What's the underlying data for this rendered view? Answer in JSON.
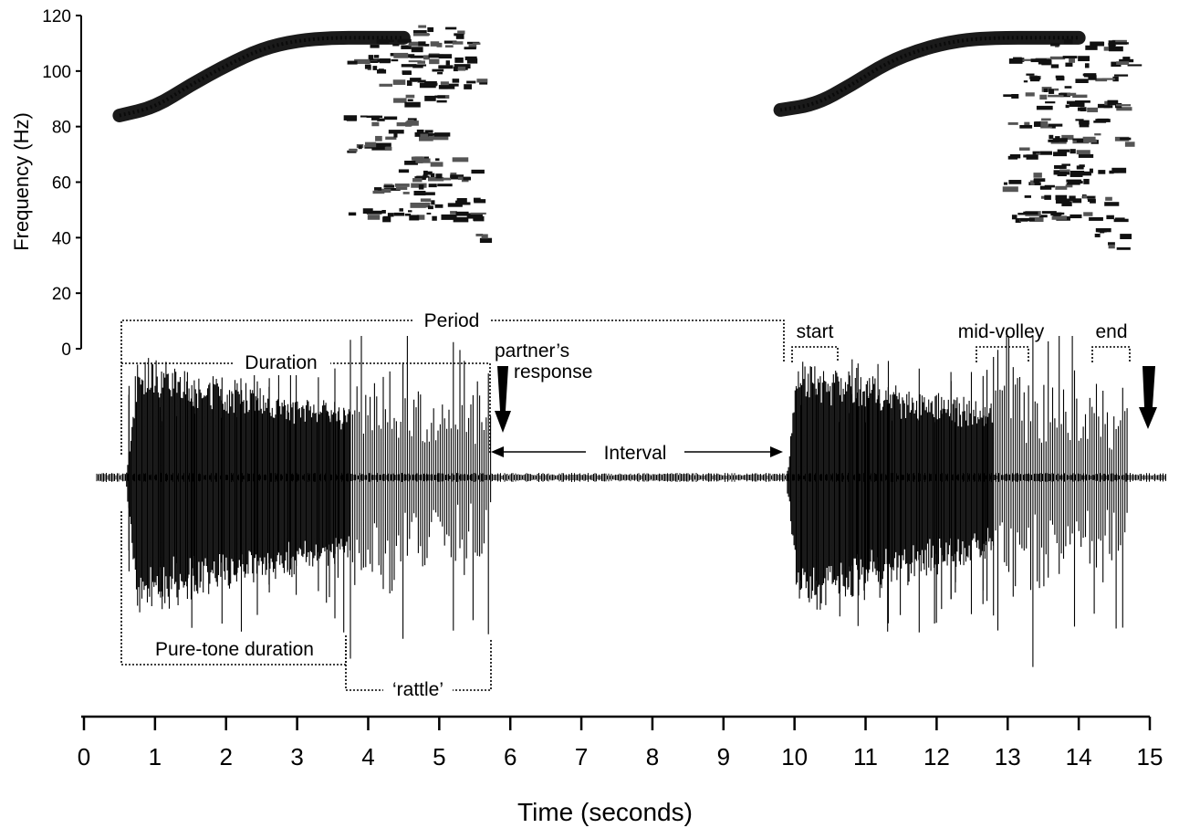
{
  "chart_data": {
    "type": "spectrogram-waveform",
    "title": "",
    "xlabel": "Time (seconds)",
    "ylabel": "Frequency (Hz)",
    "xlim": [
      0,
      15
    ],
    "ylim": [
      0,
      120
    ],
    "x_ticks": [
      0,
      1,
      2,
      3,
      4,
      5,
      6,
      7,
      8,
      9,
      10,
      11,
      12,
      13,
      14,
      15
    ],
    "y_ticks": [
      0,
      20,
      40,
      60,
      80,
      100,
      120
    ],
    "calls": [
      {
        "start": 0.6,
        "pure_tone_end": 3.75,
        "end": 5.75
      },
      {
        "start": 9.9,
        "pure_tone_end": 12.8,
        "end": 14.7
      }
    ],
    "spectrogram": [
      {
        "pure_tone": [
          [
            0.5,
            84
          ],
          [
            1.0,
            87
          ],
          [
            1.5,
            95
          ],
          [
            2.0,
            102
          ],
          [
            2.5,
            108
          ],
          [
            3.0,
            111
          ],
          [
            3.5,
            112
          ],
          [
            4.0,
            112
          ],
          [
            4.5,
            112
          ]
        ],
        "rattle_x": [
          3.5,
          5.7
        ],
        "rattle_bands": [
          {
            "f": 115,
            "x0": 4.6,
            "x1": 5.3
          },
          {
            "f": 110,
            "x0": 4.0,
            "x1": 5.5
          },
          {
            "f": 105,
            "x0": 3.7,
            "x1": 5.6
          },
          {
            "f": 101,
            "x0": 3.9,
            "x1": 5.3
          },
          {
            "f": 96,
            "x0": 4.1,
            "x1": 5.6
          },
          {
            "f": 90,
            "x0": 4.3,
            "x1": 5.0
          },
          {
            "f": 83,
            "x0": 3.6,
            "x1": 4.6
          },
          {
            "f": 78,
            "x0": 4.0,
            "x1": 5.0
          },
          {
            "f": 73,
            "x0": 3.7,
            "x1": 4.4
          },
          {
            "f": 68,
            "x0": 4.5,
            "x1": 5.3
          },
          {
            "f": 63,
            "x0": 4.2,
            "x1": 5.6
          },
          {
            "f": 58,
            "x0": 3.8,
            "x1": 5.0
          },
          {
            "f": 53,
            "x0": 4.5,
            "x1": 5.5
          },
          {
            "f": 49,
            "x0": 3.6,
            "x1": 5.6
          },
          {
            "f": 40,
            "x0": 5.4,
            "x1": 5.6
          }
        ]
      },
      {
        "pure_tone": [
          [
            9.8,
            86
          ],
          [
            10.3,
            88
          ],
          [
            10.8,
            95
          ],
          [
            11.3,
            103
          ],
          [
            11.8,
            108
          ],
          [
            12.3,
            111
          ],
          [
            12.8,
            112
          ],
          [
            13.5,
            112
          ],
          [
            14.0,
            112
          ]
        ],
        "rattle_x": [
          12.8,
          14.7
        ],
        "rattle_bands": [
          {
            "f": 110,
            "x0": 13.4,
            "x1": 14.6
          },
          {
            "f": 104,
            "x0": 13.0,
            "x1": 14.7
          },
          {
            "f": 98,
            "x0": 13.2,
            "x1": 14.5
          },
          {
            "f": 93,
            "x0": 12.9,
            "x1": 14.0
          },
          {
            "f": 88,
            "x0": 13.3,
            "x1": 14.6
          },
          {
            "f": 82,
            "x0": 13.0,
            "x1": 14.3
          },
          {
            "f": 76,
            "x0": 13.5,
            "x1": 14.7
          },
          {
            "f": 71,
            "x0": 13.0,
            "x1": 14.0
          },
          {
            "f": 65,
            "x0": 13.3,
            "x1": 14.5
          },
          {
            "f": 60,
            "x0": 12.9,
            "x1": 14.2
          },
          {
            "f": 54,
            "x0": 13.2,
            "x1": 14.4
          },
          {
            "f": 48,
            "x0": 13.0,
            "x1": 14.6
          },
          {
            "f": 42,
            "x0": 14.2,
            "x1": 14.6
          },
          {
            "f": 38,
            "x0": 14.4,
            "x1": 14.6
          }
        ]
      }
    ],
    "annotations": {
      "period": "Period",
      "duration": "Duration",
      "partners_response_line1": "partner’s",
      "partners_response_line2": "response",
      "interval": "Interval",
      "pure_tone_duration": "Pure-tone duration",
      "rattle": "‘rattle’",
      "start": "start",
      "mid_volley": "mid-volley",
      "end": "end"
    }
  }
}
